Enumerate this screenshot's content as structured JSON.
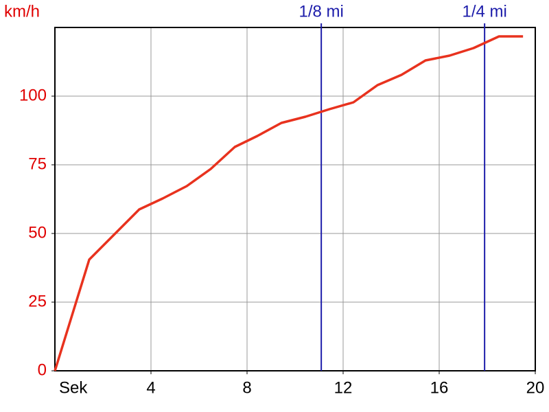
{
  "chart_data": {
    "type": "line",
    "y_label": "km/h",
    "x_label": "Sek",
    "x": [
      0,
      1.43,
      3.51,
      4.49,
      5.49,
      6.49,
      7.49,
      8.43,
      9.43,
      10.43,
      11.43,
      12.43,
      13.43,
      14.43,
      15.43,
      16.43,
      17.43,
      18.49,
      19.49
    ],
    "series": [
      {
        "color": "#e8321e",
        "values": [
          0,
          40.5,
          58.75,
          62.75,
          67.25,
          73.5,
          81.5,
          85.5,
          90.25,
          92.5,
          95.25,
          97.75,
          104,
          107.75,
          113,
          114.75,
          117.5,
          121.75,
          121.75
        ]
      }
    ],
    "xlim": [
      0,
      20
    ],
    "xticks": [
      4,
      8,
      12,
      16,
      20
    ],
    "ylim": [
      0,
      125
    ],
    "yticks": [
      0,
      25,
      50,
      75,
      100
    ],
    "grid": true,
    "markers": [
      {
        "label": "1/8 mi",
        "x": 11.09,
        "color": "#1c1caa"
      },
      {
        "label": "1/4 mi",
        "x": 17.89,
        "color": "#1c1caa"
      }
    ]
  }
}
